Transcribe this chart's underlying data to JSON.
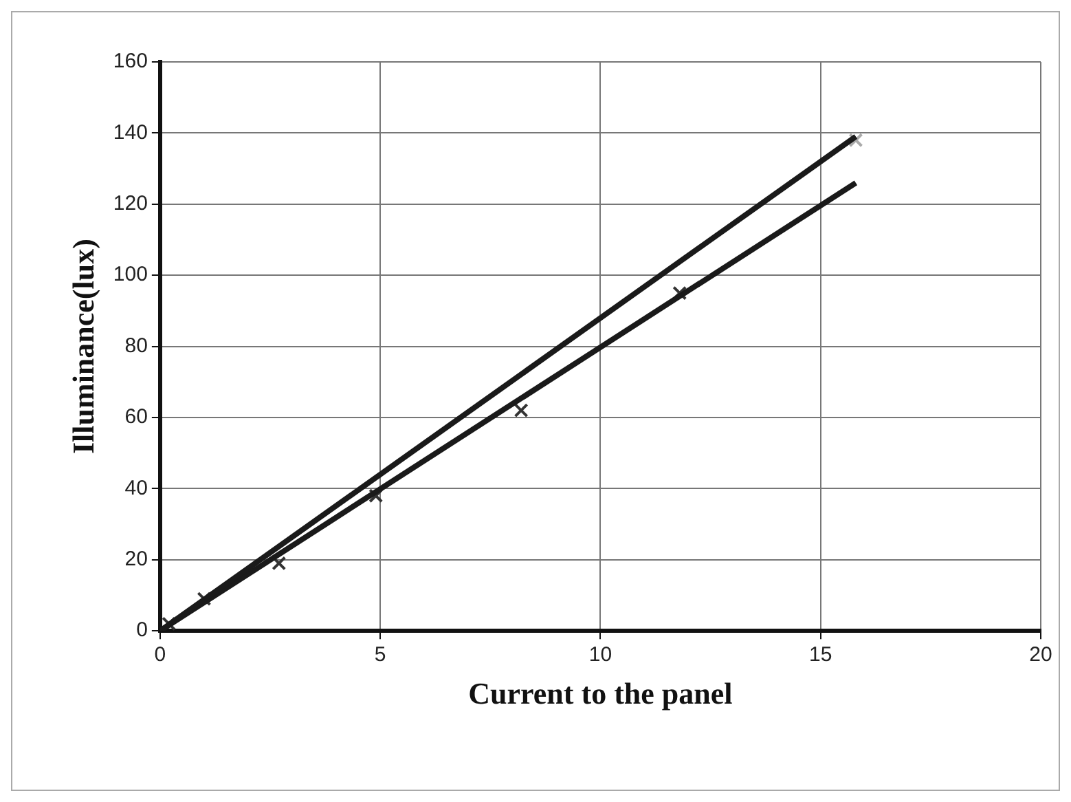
{
  "chart_data": {
    "type": "line",
    "xlabel": "Current to the panel",
    "ylabel": "Illuminance(lux)",
    "xlim": [
      0,
      20
    ],
    "xticks": [
      0,
      5,
      10,
      15,
      20
    ],
    "ylim": [
      0,
      160
    ],
    "yticks": [
      0,
      20,
      40,
      60,
      80,
      100,
      120,
      140,
      160
    ],
    "grid": true,
    "legend": false,
    "series": [
      {
        "type": "line",
        "color": "#1a1a1a",
        "x": [
          0,
          15.8
        ],
        "values": [
          0,
          139
        ],
        "marker": "none"
      },
      {
        "type": "line",
        "color": "#1a1a1a",
        "x": [
          0,
          15.8
        ],
        "values": [
          0,
          126
        ],
        "marker": "none"
      },
      {
        "type": "scatter",
        "color": "#333333",
        "x": [
          0.2,
          1,
          2.7,
          4.9,
          8.2,
          11.8
        ],
        "values": [
          2,
          9,
          19,
          38,
          62,
          95
        ],
        "marker": "cross"
      },
      {
        "type": "scatter",
        "color": "#aaaaaa",
        "x": [
          15.8
        ],
        "values": [
          138
        ],
        "marker": "cross"
      }
    ]
  }
}
